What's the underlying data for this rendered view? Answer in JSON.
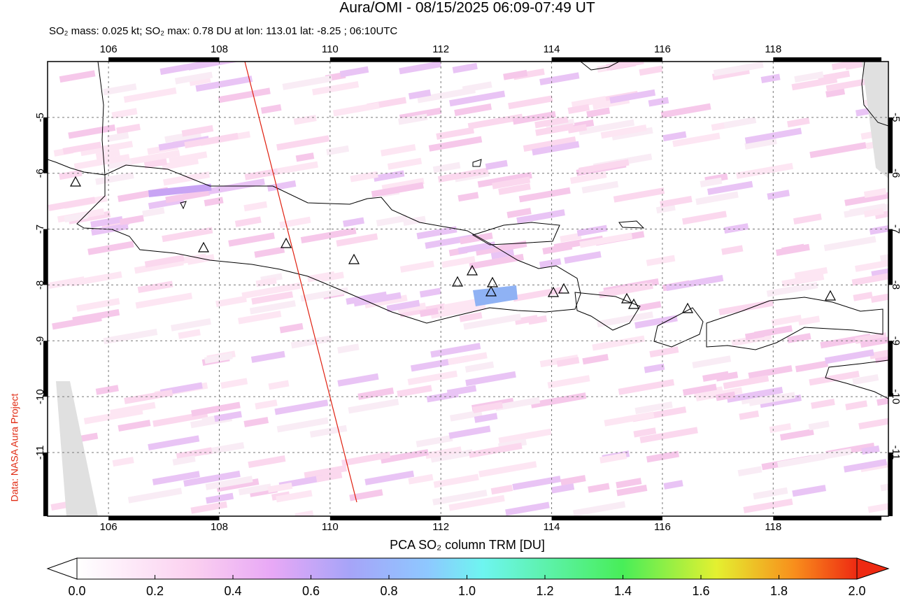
{
  "header": {
    "title": "Aura/OMI - 08/15/2025 06:09-07:49 UT",
    "subtitle": "SO₂ mass: 0.025 kt; SO₂ max: 0.78 DU at lon: 113.01 lat: -8.25 ; 06:10UTC"
  },
  "map": {
    "xlim": [
      104.9,
      120.08
    ],
    "ylim": [
      -12.14,
      -4.0
    ],
    "xticks": [
      106,
      108,
      110,
      112,
      114,
      116,
      118
    ],
    "yticks": [
      -5,
      -6,
      -7,
      -8,
      -9,
      -10,
      -11
    ]
  },
  "colorbar": {
    "label": "PCA SO₂ column TRM [DU]",
    "lim": [
      0,
      2
    ],
    "ticks": [
      {
        "value": 0,
        "label": "0.0"
      },
      {
        "value": 0.2,
        "label": "0.2"
      },
      {
        "value": 0.4,
        "label": "0.4"
      },
      {
        "value": 0.6,
        "label": "0.6"
      },
      {
        "value": 0.8,
        "label": "0.8"
      },
      {
        "value": 1,
        "label": "1.0"
      },
      {
        "value": 1.2,
        "label": "1.2"
      },
      {
        "value": 1.4,
        "label": "1.4"
      },
      {
        "value": 1.6,
        "label": "1.6"
      },
      {
        "value": 1.8,
        "label": "1.8"
      },
      {
        "value": 2,
        "label": "2.0"
      }
    ]
  },
  "credit": "Data: NASA Aura Project"
}
